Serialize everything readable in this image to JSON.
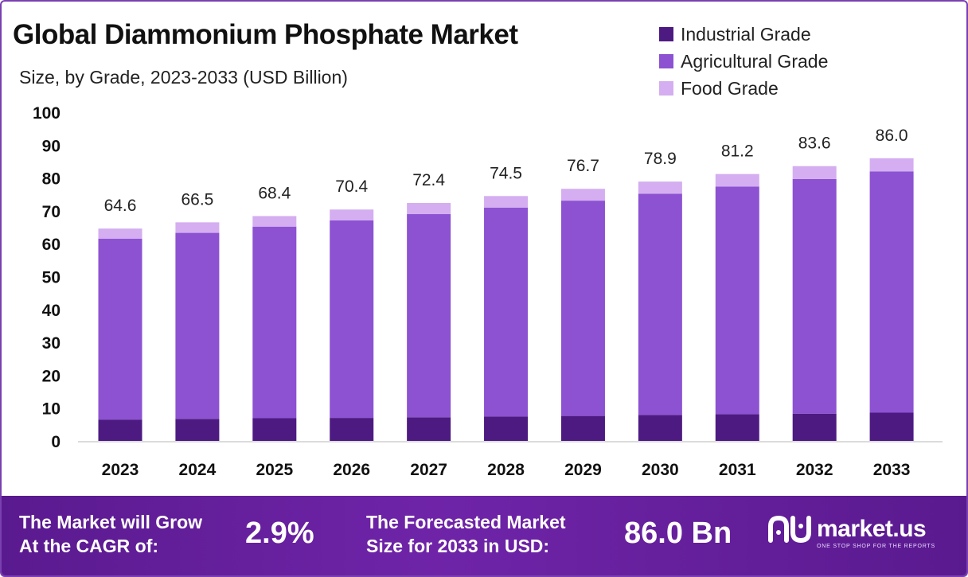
{
  "header": {
    "title": "Global Diammonium Phosphate Market",
    "subtitle": "Size, by Grade, 2023-2033 (USD Billion)"
  },
  "legend": [
    {
      "label": "Industrial Grade",
      "color": "#4d1a82"
    },
    {
      "label": "Agricultural Grade",
      "color": "#8c52d2"
    },
    {
      "label": "Food Grade",
      "color": "#d4aef0"
    }
  ],
  "chart_data": {
    "type": "bar",
    "stacked": true,
    "title": "Global Diammonium Phosphate Market",
    "subtitle": "Size, by Grade, 2023-2033 (USD Billion)",
    "categories": [
      "2023",
      "2024",
      "2025",
      "2026",
      "2027",
      "2028",
      "2029",
      "2030",
      "2031",
      "2032",
      "2033"
    ],
    "series": [
      {
        "name": "Industrial Grade",
        "color": "#4d1a82",
        "values": [
          6.5,
          6.7,
          6.9,
          7.0,
          7.2,
          7.4,
          7.6,
          7.9,
          8.1,
          8.3,
          8.6
        ]
      },
      {
        "name": "Agricultural Grade",
        "color": "#8c52d2",
        "values": [
          55.0,
          56.6,
          58.3,
          60.1,
          61.8,
          63.6,
          65.5,
          67.3,
          69.3,
          71.4,
          73.4
        ]
      },
      {
        "name": "Food Grade",
        "color": "#d4aef0",
        "values": [
          3.1,
          3.2,
          3.2,
          3.3,
          3.4,
          3.5,
          3.6,
          3.7,
          3.8,
          3.9,
          4.0
        ]
      }
    ],
    "totals": [
      "64.6",
      "66.5",
      "68.4",
      "70.4",
      "72.4",
      "74.5",
      "76.7",
      "78.9",
      "81.2",
      "83.6",
      "86.0"
    ],
    "yticks": [
      "0",
      "10",
      "20",
      "30",
      "40",
      "50",
      "60",
      "70",
      "80",
      "90",
      "100"
    ],
    "ylim": [
      0,
      100
    ],
    "grid": false,
    "legend_position": "top-right"
  },
  "footer": {
    "cagr_line1": "The Market will Grow",
    "cagr_line2": "At the CAGR of:",
    "cagr_value": "2.9%",
    "forecast_line1": "The Forecasted Market",
    "forecast_line2": "Size for 2033 in USD:",
    "forecast_value": "86.0 Bn",
    "brand_name": "market.us",
    "brand_tagline": "ONE STOP SHOP FOR THE REPORTS",
    "bg_color": "#6a22a0"
  }
}
